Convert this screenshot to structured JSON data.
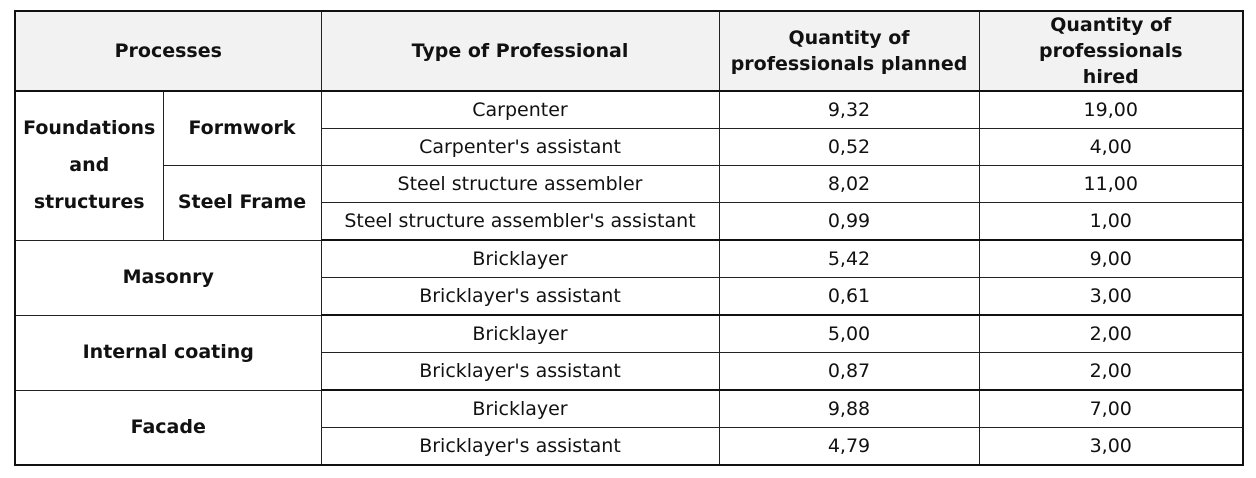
{
  "table": {
    "headers": {
      "processes": "Processes",
      "type_of_professional": "Type of Professional",
      "planned": "Quantity of professionals planned",
      "hired": "Quantity of professionals hired"
    },
    "groups": {
      "foundations": "Foundations and structures",
      "formwork": "Formwork",
      "steel_frame": "Steel Frame",
      "masonry": "Masonry",
      "internal_coating": "Internal coating",
      "facade": "Facade"
    },
    "rows": [
      {
        "professional": "Carpenter",
        "planned": "9,32",
        "hired": "19,00"
      },
      {
        "professional": "Carpenter's assistant",
        "planned": "0,52",
        "hired": "4,00"
      },
      {
        "professional": "Steel structure assembler",
        "planned": "8,02",
        "hired": "11,00"
      },
      {
        "professional": "Steel structure assembler's assistant",
        "planned": "0,99",
        "hired": "1,00"
      },
      {
        "professional": "Bricklayer",
        "planned": "5,42",
        "hired": "9,00"
      },
      {
        "professional": "Bricklayer's assistant",
        "planned": "0,61",
        "hired": "3,00"
      },
      {
        "professional": "Bricklayer",
        "planned": "5,00",
        "hired": "2,00"
      },
      {
        "professional": "Bricklayer's assistant",
        "planned": "0,87",
        "hired": "2,00"
      },
      {
        "professional": "Bricklayer",
        "planned": "9,88",
        "hired": "7,00"
      },
      {
        "professional": "Bricklayer's assistant",
        "planned": "4,79",
        "hired": "3,00"
      }
    ]
  }
}
